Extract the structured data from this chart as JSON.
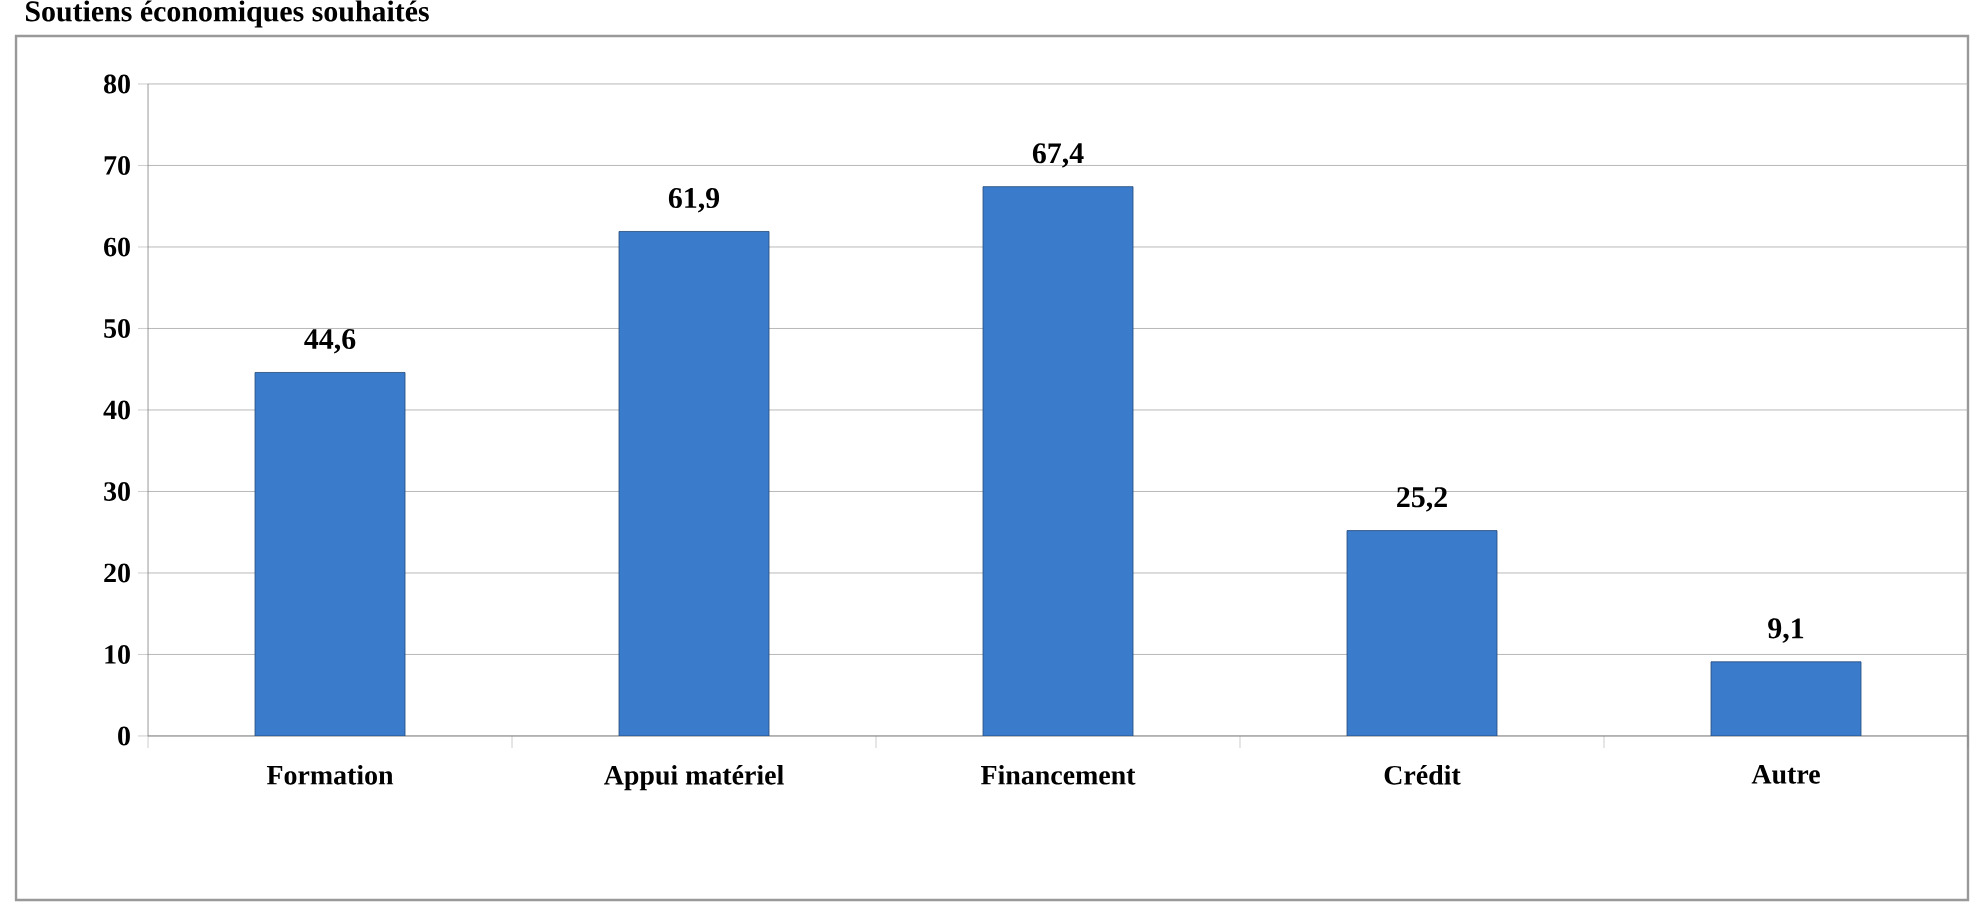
{
  "chart_data": {
    "type": "bar",
    "title": "Soutiens économiques souhaités",
    "categories": [
      "Formation",
      "Appui matériel",
      "Financement",
      "Crédit",
      "Autre"
    ],
    "values": [
      44.6,
      61.9,
      67.4,
      25.2,
      9.1
    ],
    "value_labels": [
      "44,6",
      "61,9",
      "67,4",
      "25,2",
      "9,1"
    ],
    "color": "#3b7bcc",
    "ylim": [
      0,
      80
    ],
    "yticks": [
      0,
      10,
      20,
      30,
      40,
      50,
      60,
      70,
      80
    ],
    "grid": "y"
  }
}
